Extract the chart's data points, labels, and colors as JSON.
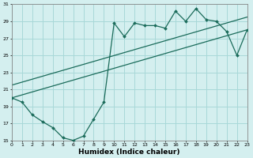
{
  "xlabel": "Humidex (Indice chaleur)",
  "xlim": [
    0,
    23
  ],
  "ylim": [
    15,
    31
  ],
  "yticks": [
    15,
    17,
    19,
    21,
    23,
    25,
    27,
    29,
    31
  ],
  "xticks": [
    0,
    1,
    2,
    3,
    4,
    5,
    6,
    7,
    8,
    9,
    10,
    11,
    12,
    13,
    14,
    15,
    16,
    17,
    18,
    19,
    20,
    21,
    22,
    23
  ],
  "bg_color": "#d4efef",
  "grid_color": "#a8d8d8",
  "line_color": "#1a6b5a",
  "line1_x": [
    0,
    1,
    2,
    3,
    4,
    5,
    6,
    7,
    8,
    9,
    10,
    11,
    12,
    13,
    14,
    15,
    16,
    17,
    18,
    19,
    20,
    21,
    22,
    23
  ],
  "line1_y": [
    20.0,
    19.5,
    18.0,
    17.2,
    16.5,
    15.3,
    15.0,
    15.5,
    17.5,
    19.5,
    28.8,
    27.2,
    28.8,
    28.5,
    28.5,
    28.2,
    30.2,
    29.0,
    30.5,
    29.2,
    29.0,
    27.8,
    25.0,
    28.0
  ],
  "line2_x": [
    0,
    23
  ],
  "line2_y": [
    20.0,
    28.0
  ],
  "line3_x": [
    0,
    23
  ],
  "line3_y": [
    21.5,
    29.5
  ]
}
